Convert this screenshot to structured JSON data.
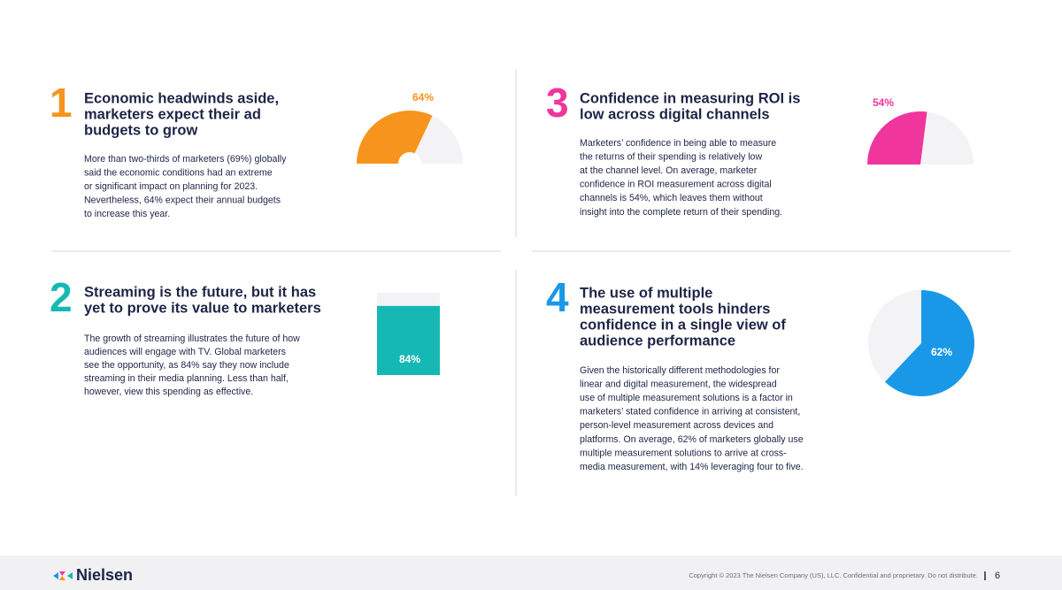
{
  "sections": [
    {
      "number": "1",
      "title": [
        "Economic headwinds aside,",
        "marketers expect their ad",
        "budgets to grow"
      ],
      "body": [
        "More than two-thirds of marketers (69%) globally",
        "said the economic conditions had an extreme",
        "or significant impact on planning for 2023.",
        "Nevertheless, 64% expect their annual budgets",
        "to increase this year."
      ],
      "chart": {
        "type": "gauge",
        "values": [
          64
        ],
        "value_labels": [
          "64%"
        ],
        "ylim": [
          0,
          100
        ],
        "color": "#f7941d"
      }
    },
    {
      "number": "2",
      "title": [
        "Streaming is the future, but it has",
        "yet to prove its value to marketers"
      ],
      "body": [
        "The growth of streaming illustrates the future of how",
        "audiences will engage with TV. Global marketers",
        "see the opportunity, as 84% say they now include",
        "streaming in their media planning. Less than half,",
        "however, view this spending as effective."
      ],
      "chart": {
        "type": "bar",
        "values": [
          84
        ],
        "value_labels": [
          "84%"
        ],
        "ylim": [
          0,
          100
        ],
        "color": "#16b8b3"
      }
    },
    {
      "number": "3",
      "title": [
        "Confidence in measuring ROI is",
        "low across digital channels"
      ],
      "body": [
        "Marketers’ confidence in being able to measure",
        "the returns of their spending is relatively low",
        "at the channel level. On average, marketer",
        "confidence in ROI measurement across digital",
        "channels is 54%, which leaves them without",
        "insight into the complete return of their spending."
      ],
      "chart": {
        "type": "gauge",
        "values": [
          54
        ],
        "value_labels": [
          "54%"
        ],
        "ylim": [
          0,
          100
        ],
        "color": "#f0359d"
      }
    },
    {
      "number": "4",
      "title": [
        "The use of multiple",
        "measurement tools hinders",
        "confidence in a single view of",
        "audience performance"
      ],
      "body": [
        "Given the historically different methodologies for",
        "linear and digital measurement, the widespread",
        "use of multiple measurement solutions is a factor in",
        "marketers’ stated confidence in arriving at consistent,",
        "person-level measurement across devices and",
        "platforms. On average, 62% of marketers globally use",
        "multiple measurement solutions to arrive at cross-",
        "media measurement, with 14% leveraging four to five."
      ],
      "chart": {
        "type": "pie",
        "values": [
          62
        ],
        "value_labels": [
          "62%"
        ],
        "ylim": [
          0,
          100
        ],
        "color": "#1a98e8"
      }
    }
  ],
  "footer": {
    "brand": "Nielsen",
    "copyright": "Copyright © 2023 The Nielsen Company (US), LLC. Confidential and proprietary. Do not distribute.",
    "page_number": "6"
  }
}
